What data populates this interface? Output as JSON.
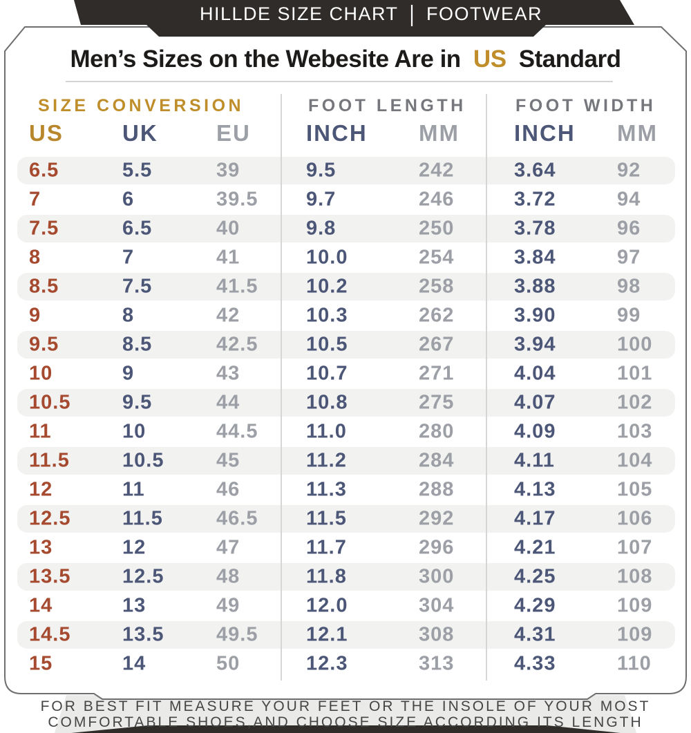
{
  "banner": {
    "brand": "HILLDE SIZE CHART",
    "separator": "|",
    "category": "FOOTWEAR"
  },
  "title": {
    "prefix": "Men’s Sizes on the Webesite Are in",
    "highlight": "US",
    "suffix": "Standard"
  },
  "chart_data": {
    "type": "table",
    "title": "Men’s Sizes on the Webesite Are in US Standard",
    "sections": [
      {
        "label": "SIZE CONVERSION"
      },
      {
        "label": "FOOT LENGTH"
      },
      {
        "label": "FOOT WIDTH"
      }
    ],
    "columns": [
      {
        "key": "us",
        "label": "US",
        "header_color": "#b8872b",
        "value_color": "#a5492f"
      },
      {
        "key": "uk",
        "label": "UK",
        "header_color": "#4c5677",
        "value_color": "#4c5677"
      },
      {
        "key": "eu",
        "label": "EU",
        "header_color": "#9ca0a6",
        "value_color": "#9ca0a6"
      },
      {
        "key": "length-inch",
        "label": "INCH",
        "header_color": "#4c5677",
        "value_color": "#4c5677"
      },
      {
        "key": "length-mm",
        "label": "MM",
        "header_color": "#9ca0a6",
        "value_color": "#9ca0a6"
      },
      {
        "key": "width-inch",
        "label": "INCH",
        "header_color": "#4c5677",
        "value_color": "#4c5677"
      },
      {
        "key": "width-mm",
        "label": "MM",
        "header_color": "#9ca0a6",
        "value_color": "#9ca0a6"
      }
    ],
    "rows": [
      [
        "6.5",
        "5.5",
        "39",
        "9.5",
        "242",
        "3.64",
        "92"
      ],
      [
        "7",
        "6",
        "39.5",
        "9.7",
        "246",
        "3.72",
        "94"
      ],
      [
        "7.5",
        "6.5",
        "40",
        "9.8",
        "250",
        "3.78",
        "96"
      ],
      [
        "8",
        "7",
        "41",
        "10.0",
        "254",
        "3.84",
        "97"
      ],
      [
        "8.5",
        "7.5",
        "41.5",
        "10.2",
        "258",
        "3.88",
        "98"
      ],
      [
        "9",
        "8",
        "42",
        "10.3",
        "262",
        "3.90",
        "99"
      ],
      [
        "9.5",
        "8.5",
        "42.5",
        "10.5",
        "267",
        "3.94",
        "100"
      ],
      [
        "10",
        "9",
        "43",
        "10.7",
        "271",
        "4.04",
        "101"
      ],
      [
        "10.5",
        "9.5",
        "44",
        "10.8",
        "275",
        "4.07",
        "102"
      ],
      [
        "11",
        "10",
        "44.5",
        "11.0",
        "280",
        "4.09",
        "103"
      ],
      [
        "11.5",
        "10.5",
        "45",
        "11.2",
        "284",
        "4.11",
        "104"
      ],
      [
        "12",
        "11",
        "46",
        "11.3",
        "288",
        "4.13",
        "105"
      ],
      [
        "12.5",
        "11.5",
        "46.5",
        "11.5",
        "292",
        "4.17",
        "106"
      ],
      [
        "13",
        "12",
        "47",
        "11.7",
        "296",
        "4.21",
        "107"
      ],
      [
        "13.5",
        "12.5",
        "48",
        "11.8",
        "300",
        "4.25",
        "108"
      ],
      [
        "14",
        "13",
        "49",
        "12.0",
        "304",
        "4.29",
        "109"
      ],
      [
        "14.5",
        "13.5",
        "49.5",
        "12.1",
        "308",
        "4.31",
        "109"
      ],
      [
        "15",
        "14",
        "50",
        "12.3",
        "313",
        "4.33",
        "110"
      ]
    ]
  },
  "footer": {
    "line1": "FOR BEST FIT MEASURE YOUR FEET OR THE INSOLE OF YOUR MOST",
    "line2": "COMFORTABLE SHOES,AND CHOOSE SIZE ACCORDING ITS LENGTH"
  },
  "colors": {
    "banner_bg": "#2f2c2a",
    "card_bg": "#ffffff",
    "card_border": "#6e6e6e",
    "gold_accent": "#bf8e2a",
    "us_value_rust": "#a5492f",
    "navy": "#4c5677",
    "muted_gray": "#9ca0a6",
    "section_gray": "#75777c",
    "row_stripe": "#f2f2f1",
    "divider": "#d6d6d6",
    "footer_panel": "#eaeae8",
    "footer_text": "#454545",
    "title_text": "#1d1b1a"
  }
}
